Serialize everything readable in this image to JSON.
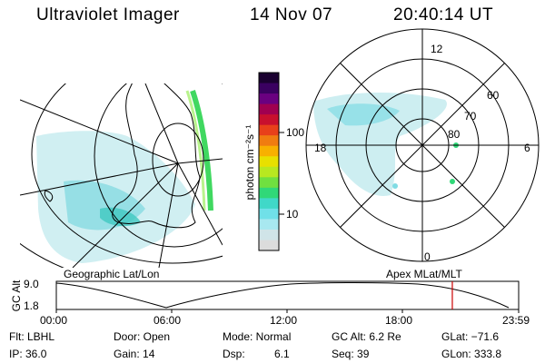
{
  "header": {
    "instrument": "Ultraviolet Imager",
    "date": "14 Nov 07",
    "time": "20:40:14 UT"
  },
  "colorbar": {
    "unit_label": "photon cm⁻²s⁻¹",
    "ticks": [
      "100",
      "10"
    ],
    "colors": [
      "#1a0030",
      "#3a0060",
      "#6a0080",
      "#a00050",
      "#c8102e",
      "#e8401a",
      "#f07c10",
      "#f8b000",
      "#e8e000",
      "#b8e820",
      "#70e040",
      "#30d878",
      "#40d8c8",
      "#70e0e8",
      "#a8e8f0",
      "#d0e4e8",
      "#dcdcdc"
    ]
  },
  "left_map": {
    "label": "Geographic Lat/Lon"
  },
  "right_map": {
    "label": "Apex MLat/MLT",
    "mlt_labels": [
      "12",
      "18",
      "6",
      "0"
    ],
    "lat_labels": [
      "60",
      "70",
      "80"
    ]
  },
  "timeline": {
    "axis_label": "GC Alt",
    "y_ticks": [
      "9.0",
      "1.8"
    ],
    "x_ticks": [
      "00:00",
      "06:00",
      "12:00",
      "18:00",
      "23:59"
    ],
    "current_time_fraction": 0.8565
  },
  "info": {
    "filter": "Flt: LBHL",
    "ip": "IP: 36.0",
    "door": "Door: Open",
    "gain": "Gain: 14",
    "mode": "Mode: Normal",
    "dsp": "Dsp:",
    "dsp_value": "6.1",
    "gc_alt": "GC Alt: 6.2 Re",
    "seq": "Seq: 39",
    "glat": "GLat: −71.6",
    "glon": "GLon: 333.8"
  }
}
